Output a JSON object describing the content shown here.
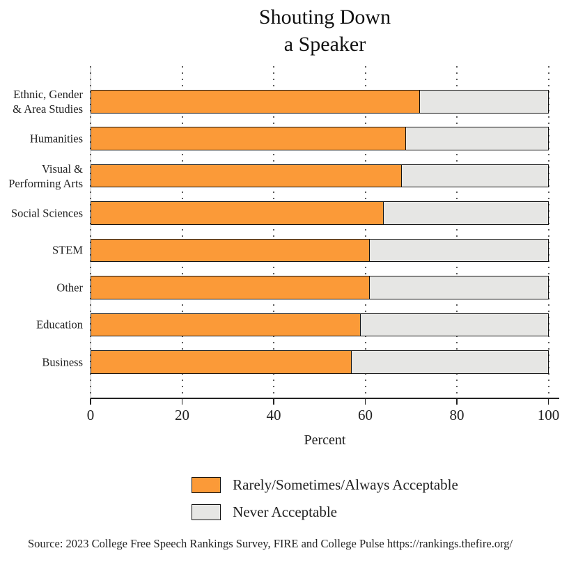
{
  "source": "Source: 2023 College Free Speech Rankings Survey, FIRE and College Pulse https://rankings.thefire.org/",
  "colors": {
    "accepted_orange": "#FB9A38",
    "never_gray": "#E6E6E4",
    "bar_border": "#111111",
    "gridline": "#5a5a5a"
  },
  "chart_data": {
    "type": "bar",
    "orientation": "horizontal",
    "stacked": true,
    "title": "Shouting Down\na Speaker",
    "categories": [
      "Ethnic, Gender\n& Area Studies",
      "Humanities",
      "Visual &\nPerforming Arts",
      "Social Sciences",
      "STEM",
      "Other",
      "Education",
      "Business"
    ],
    "series": [
      {
        "name": "Rarely/Sometimes/Always Acceptable",
        "color": "#FB9A38",
        "values": [
          72,
          69,
          68,
          64,
          61,
          61,
          59,
          57
        ]
      },
      {
        "name": "Never Acceptable",
        "color": "#E6E6E4",
        "values": [
          28,
          31,
          32,
          36,
          39,
          39,
          41,
          43
        ]
      }
    ],
    "xlabel": "Percent",
    "xlim": [
      0,
      100
    ],
    "xticks": [
      0,
      20,
      40,
      60,
      80,
      100
    ],
    "grid": "dotted-vertical",
    "legend_position": "bottom"
  }
}
